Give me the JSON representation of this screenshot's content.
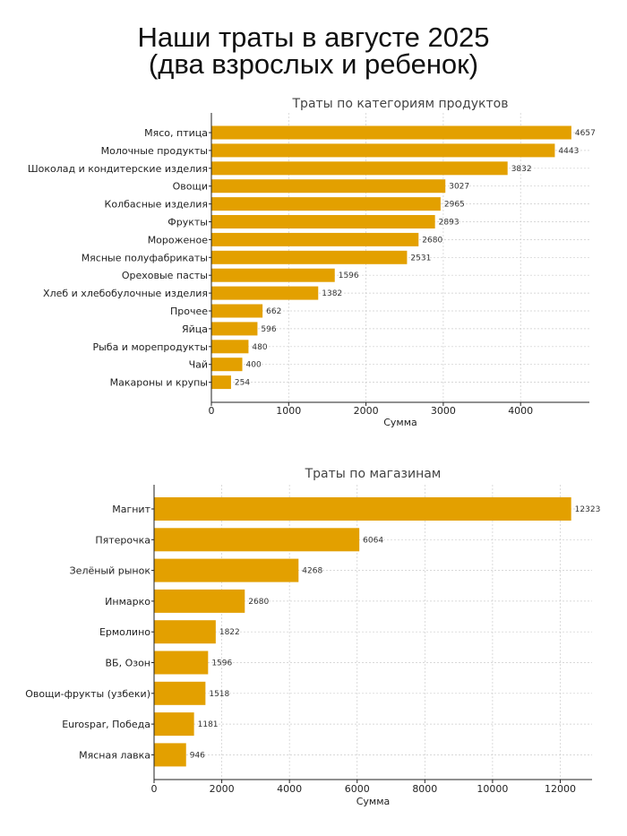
{
  "page": {
    "title_line1": "Наши траты в августе 2025",
    "title_line2": "(два взрослых и ребенок)"
  },
  "colors": {
    "bar": "#E3A000",
    "grid": "#cccccc",
    "axis": "#222222"
  },
  "chart_data": [
    {
      "type": "bar",
      "orientation": "horizontal",
      "title": "Траты по категориям продуктов",
      "xlabel": "Сумма",
      "ylabel": "",
      "xlim": [
        0,
        4890
      ],
      "xticks": [
        0,
        1000,
        2000,
        3000,
        4000
      ],
      "grid": true,
      "categories": [
        "Мясо, птица",
        "Молочные продукты",
        "Шоколад и кондитерские изделия",
        "Овощи",
        "Колбасные изделия",
        "Фрукты",
        "Мороженое",
        "Мясные полуфабрикаты",
        "Ореховые пасты",
        "Хлеб и хлебобулочные изделия",
        "Прочее",
        "Яйца",
        "Рыба и морепродукты",
        "Чай",
        "Макароны и крупы"
      ],
      "values": [
        4657,
        4443,
        3832,
        3027,
        2965,
        2893,
        2680,
        2531,
        1596,
        1382,
        662,
        596,
        480,
        400,
        254
      ]
    },
    {
      "type": "bar",
      "orientation": "horizontal",
      "title": "Траты по магазинам",
      "xlabel": "Сумма",
      "ylabel": "",
      "xlim": [
        0,
        12940
      ],
      "xticks": [
        0,
        2000,
        4000,
        6000,
        8000,
        10000,
        12000
      ],
      "grid": true,
      "categories": [
        "Магнит",
        "Пятерочка",
        "Зелёный рынок",
        "Инмарко",
        "Ермолино",
        "ВБ, Озон",
        "Овощи-фрукты (узбеки)",
        "Eurospar, Победа",
        "Мясная лавка"
      ],
      "values": [
        12323,
        6064,
        4268,
        2680,
        1822,
        1596,
        1518,
        1181,
        946
      ]
    }
  ]
}
